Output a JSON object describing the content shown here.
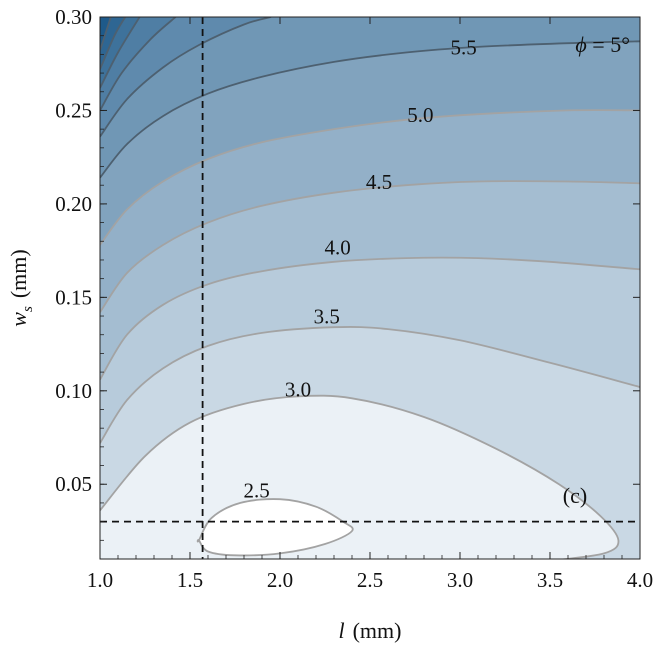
{
  "chart_data": {
    "type": "contour",
    "xlabel": {
      "symbol": "l",
      "unit": "(mm)"
    },
    "ylabel": {
      "symbol": "w",
      "subscript": "s",
      "unit": "(mm)"
    },
    "xlim": [
      1.0,
      4.0
    ],
    "ylim": [
      0.01,
      0.3
    ],
    "xticks": [
      "1.0",
      "1.5",
      "2.0",
      "2.5",
      "3.0",
      "3.5",
      "4.0"
    ],
    "yticks": [
      "0.05",
      "0.10",
      "0.15",
      "0.20",
      "0.25",
      "0.30"
    ],
    "annotation": "ϕ = 5°",
    "panel_label": "(c)",
    "grid": false,
    "contours": [
      {
        "level": 2.5,
        "label": "2.5",
        "label_at": [
          1.87,
          0.044
        ],
        "points": [
          [
            1.55,
            0.02
          ],
          [
            1.62,
            0.032
          ],
          [
            1.78,
            0.04
          ],
          [
            2.0,
            0.042
          ],
          [
            2.2,
            0.038
          ],
          [
            2.35,
            0.03
          ],
          [
            2.4,
            0.025
          ],
          [
            2.25,
            0.018
          ],
          [
            2.0,
            0.013
          ],
          [
            1.75,
            0.012
          ],
          [
            1.6,
            0.014
          ],
          [
            1.55,
            0.02
          ]
        ],
        "closed": true
      },
      {
        "level": 3.0,
        "label": "3.0",
        "label_at": [
          2.1,
          0.098
        ],
        "points": [
          [
            1.0,
            0.036
          ],
          [
            1.25,
            0.065
          ],
          [
            1.5,
            0.083
          ],
          [
            1.8,
            0.093
          ],
          [
            2.1,
            0.097
          ],
          [
            2.4,
            0.096
          ],
          [
            2.8,
            0.086
          ],
          [
            3.2,
            0.069
          ],
          [
            3.55,
            0.05
          ],
          [
            3.78,
            0.033
          ],
          [
            3.88,
            0.02
          ],
          [
            3.8,
            0.013
          ],
          [
            3.5,
            0.009
          ],
          [
            3.15,
            0.005
          ]
        ],
        "closed": false
      },
      {
        "level": 3.5,
        "label": "3.5",
        "label_at": [
          2.26,
          0.137
        ],
        "points": [
          [
            1.0,
            0.072
          ],
          [
            1.15,
            0.095
          ],
          [
            1.35,
            0.112
          ],
          [
            1.6,
            0.124
          ],
          [
            1.9,
            0.131
          ],
          [
            2.3,
            0.134
          ],
          [
            2.6,
            0.133
          ],
          [
            3.0,
            0.127
          ],
          [
            3.5,
            0.115
          ],
          [
            4.0,
            0.102
          ]
        ],
        "closed": false
      },
      {
        "level": 4.0,
        "label": "4.0",
        "label_at": [
          2.32,
          0.174
        ],
        "points": [
          [
            1.0,
            0.106
          ],
          [
            1.15,
            0.13
          ],
          [
            1.35,
            0.146
          ],
          [
            1.6,
            0.157
          ],
          [
            1.9,
            0.164
          ],
          [
            2.3,
            0.169
          ],
          [
            2.7,
            0.171
          ],
          [
            3.1,
            0.171
          ],
          [
            3.5,
            0.169
          ],
          [
            4.0,
            0.165
          ]
        ],
        "closed": false
      },
      {
        "level": 4.5,
        "label": "4.5",
        "label_at": [
          2.55,
          0.209
        ],
        "points": [
          [
            1.0,
            0.142
          ],
          [
            1.15,
            0.163
          ],
          [
            1.35,
            0.178
          ],
          [
            1.6,
            0.19
          ],
          [
            1.9,
            0.199
          ],
          [
            2.3,
            0.206
          ],
          [
            2.7,
            0.21
          ],
          [
            3.1,
            0.212
          ],
          [
            3.6,
            0.212
          ],
          [
            4.0,
            0.211
          ]
        ],
        "closed": false
      },
      {
        "level": 5.0,
        "label": "5.0",
        "label_at": [
          2.78,
          0.245
        ],
        "points": [
          [
            1.0,
            0.178
          ],
          [
            1.15,
            0.197
          ],
          [
            1.35,
            0.212
          ],
          [
            1.6,
            0.224
          ],
          [
            1.9,
            0.233
          ],
          [
            2.3,
            0.24
          ],
          [
            2.7,
            0.245
          ],
          [
            3.1,
            0.248
          ],
          [
            3.6,
            0.25
          ],
          [
            4.0,
            0.25
          ]
        ],
        "closed": false
      },
      {
        "level": 5.5,
        "label": "5.5",
        "label_at": [
          3.02,
          0.281
        ],
        "points": [
          [
            1.0,
            0.214
          ],
          [
            1.15,
            0.232
          ],
          [
            1.35,
            0.247
          ],
          [
            1.6,
            0.259
          ],
          [
            1.9,
            0.268
          ],
          [
            2.3,
            0.276
          ],
          [
            2.7,
            0.281
          ],
          [
            3.1,
            0.284
          ],
          [
            3.6,
            0.286
          ],
          [
            4.0,
            0.287
          ]
        ],
        "closed": false
      },
      {
        "level": 6.0,
        "label": "",
        "points": [
          [
            1.0,
            0.236
          ],
          [
            1.15,
            0.256
          ],
          [
            1.35,
            0.273
          ],
          [
            1.55,
            0.285
          ],
          [
            1.8,
            0.296
          ],
          [
            1.95,
            0.3
          ]
        ],
        "closed": false
      },
      {
        "level": 6.5,
        "label": "",
        "points": [
          [
            1.0,
            0.25
          ],
          [
            1.12,
            0.27
          ],
          [
            1.28,
            0.288
          ],
          [
            1.42,
            0.3
          ]
        ],
        "closed": false
      },
      {
        "level": 7.0,
        "label": "",
        "points": [
          [
            1.0,
            0.262
          ],
          [
            1.1,
            0.281
          ],
          [
            1.22,
            0.3
          ]
        ],
        "closed": false
      },
      {
        "level": 7.5,
        "label": "",
        "points": [
          [
            1.0,
            0.272
          ],
          [
            1.08,
            0.29
          ],
          [
            1.14,
            0.3
          ]
        ],
        "closed": false
      },
      {
        "level": 8.0,
        "label": "",
        "points": [
          [
            1.0,
            0.282
          ],
          [
            1.06,
            0.3
          ]
        ],
        "closed": false
      }
    ],
    "markers": {
      "vertical_dashed_line_x": 1.57,
      "horizontal_dashed_line_y": 0.03
    },
    "colors": {
      "min": "#f4f8fb",
      "max": "#1e5a8a",
      "line_light": "#a3a3a3",
      "line_dark": "#4d6070"
    }
  }
}
